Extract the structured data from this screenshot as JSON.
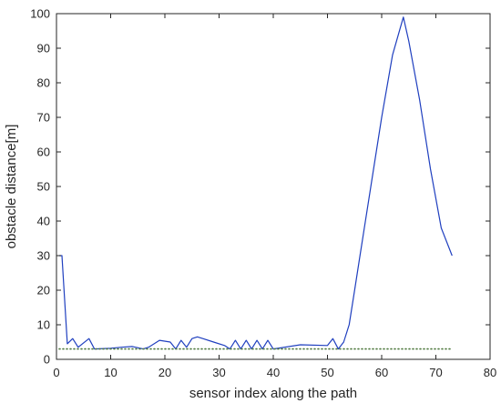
{
  "chart_data": {
    "type": "line",
    "title": "",
    "xlabel": "sensor index along the path",
    "ylabel": "obstacle distance[m]",
    "xlim": [
      0,
      80
    ],
    "ylim": [
      0,
      100
    ],
    "x_ticks": [
      0,
      10,
      20,
      30,
      40,
      50,
      60,
      70,
      80
    ],
    "y_ticks": [
      0,
      10,
      20,
      30,
      40,
      50,
      60,
      70,
      80,
      90,
      100
    ],
    "grid": false,
    "box": true,
    "series": [
      {
        "style": "solid",
        "color": "#1f3fbf",
        "x": [
          0.5,
          1,
          2,
          3,
          4,
          6,
          7,
          10,
          12,
          14,
          16,
          17,
          19,
          21,
          22,
          23,
          24,
          25,
          26,
          27,
          29,
          31,
          32,
          33,
          34,
          35,
          36,
          37,
          38,
          39,
          40,
          45,
          50,
          51,
          52,
          53,
          54,
          55,
          56,
          58,
          60,
          62,
          64,
          65,
          67,
          69,
          71,
          73
        ],
        "y": [
          30,
          30,
          4.5,
          6,
          3.5,
          6,
          3,
          3.2,
          3.5,
          3.7,
          3,
          3.5,
          5.5,
          5,
          3,
          5.5,
          3.5,
          6,
          6.5,
          6,
          5,
          4,
          3,
          5.5,
          3,
          5.5,
          3,
          5.5,
          3,
          5.5,
          3,
          4.2,
          4,
          6,
          3,
          5,
          10,
          20,
          30,
          50,
          70,
          88,
          99,
          92,
          75,
          55,
          38,
          30
        ]
      },
      {
        "style": "dotted",
        "color": "#4f7a3f",
        "x": [
          0.5,
          73
        ],
        "y": [
          3,
          3
        ]
      }
    ]
  }
}
